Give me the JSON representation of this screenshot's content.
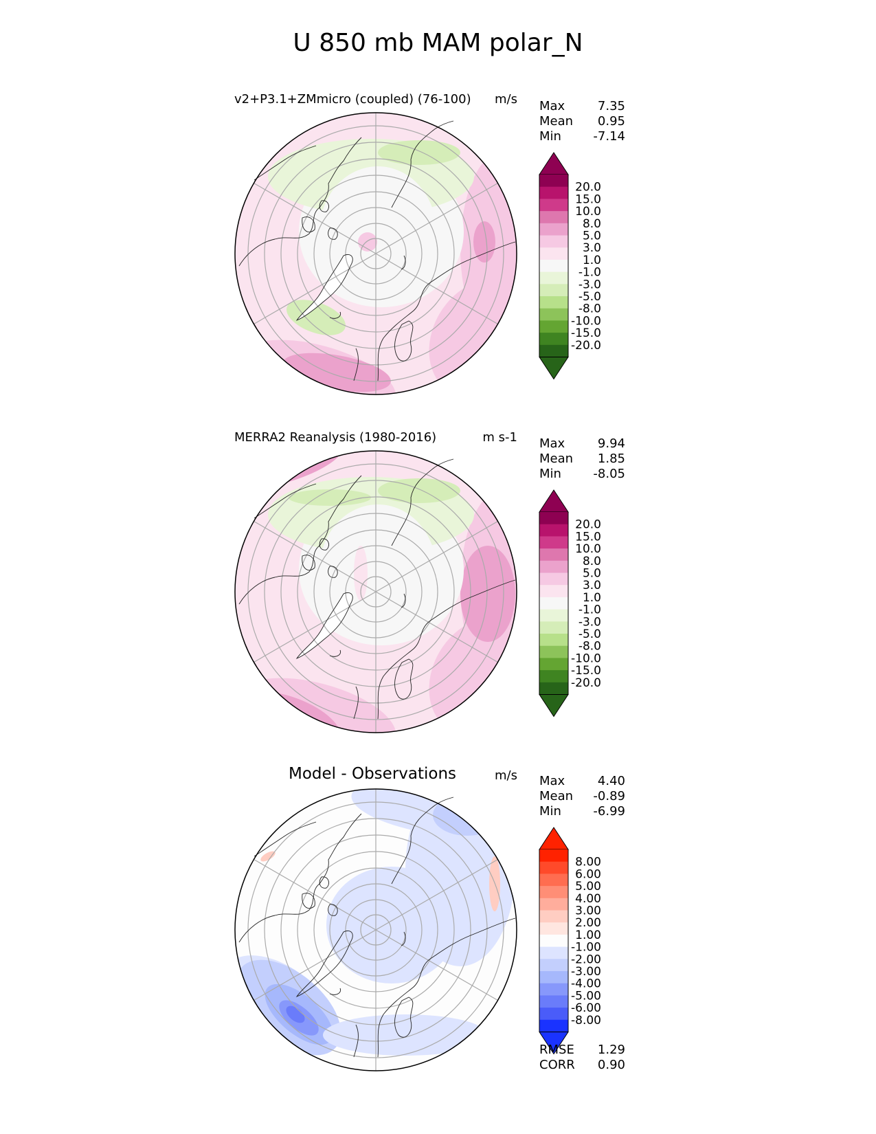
{
  "title": "U 850 mb MAM polar_N",
  "chart_data": [
    {
      "type": "heatmap",
      "projection": "north-polar-stereographic",
      "title": "v2+P3.1+ZMmicro (coupled) (76-100)",
      "units": "m/s",
      "stats": [
        {
          "label": "Max",
          "value": "7.35"
        },
        {
          "label": "Mean",
          "value": "0.95"
        },
        {
          "label": "Min",
          "value": "-7.14"
        }
      ],
      "colorbar": {
        "ticks": [
          "20.0",
          "15.0",
          "10.0",
          "8.0",
          "5.0",
          "3.0",
          "1.0",
          "-1.0",
          "-3.0",
          "-5.0",
          "-8.0",
          "-10.0",
          "-15.0",
          "-20.0"
        ],
        "colors": [
          "#8e0152",
          "#b8136c",
          "#cf3a8a",
          "#de77ae",
          "#eba2cc",
          "#f6c9e3",
          "#fbe4ef",
          "#f7f7f7",
          "#e9f5d9",
          "#d5edb8",
          "#b7e08a",
          "#8dc35a",
          "#64a532",
          "#3f8421",
          "#276419"
        ],
        "max_color": "#8e0152",
        "min_color": "#276419"
      },
      "field_colors": [
        "#fbe4ef",
        "#f6c9e3",
        "#eba2cc",
        "#f7f7f7",
        "#e9f5d9",
        "#d5edb8"
      ]
    },
    {
      "type": "heatmap",
      "projection": "north-polar-stereographic",
      "title": "MERRA2 Reanalysis (1980-2016)",
      "units": "m s-1",
      "stats": [
        {
          "label": "Max",
          "value": "9.94"
        },
        {
          "label": "Mean",
          "value": "1.85"
        },
        {
          "label": "Min",
          "value": "-8.05"
        }
      ],
      "colorbar": {
        "ticks": [
          "20.0",
          "15.0",
          "10.0",
          "8.0",
          "5.0",
          "3.0",
          "1.0",
          "-1.0",
          "-3.0",
          "-5.0",
          "-8.0",
          "-10.0",
          "-15.0",
          "-20.0"
        ],
        "colors": [
          "#8e0152",
          "#b8136c",
          "#cf3a8a",
          "#de77ae",
          "#eba2cc",
          "#f6c9e3",
          "#fbe4ef",
          "#f7f7f7",
          "#e9f5d9",
          "#d5edb8",
          "#b7e08a",
          "#8dc35a",
          "#64a532",
          "#3f8421",
          "#276419"
        ],
        "max_color": "#8e0152",
        "min_color": "#276419"
      },
      "field_colors": [
        "#fbe4ef",
        "#f6c9e3",
        "#eba2cc",
        "#f7f7f7",
        "#e9f5d9",
        "#d5edb8"
      ]
    },
    {
      "type": "heatmap",
      "projection": "north-polar-stereographic",
      "title": "Model - Observations",
      "units": "m/s",
      "stats": [
        {
          "label": "Max",
          "value": "4.40"
        },
        {
          "label": "Mean",
          "value": "-0.89"
        },
        {
          "label": "Min",
          "value": "-6.99"
        }
      ],
      "colorbar": {
        "ticks": [
          "8.00",
          "6.00",
          "5.00",
          "4.00",
          "3.00",
          "2.00",
          "1.00",
          "-1.00",
          "-2.00",
          "-3.00",
          "-4.00",
          "-5.00",
          "-6.00",
          "-8.00"
        ],
        "colors": [
          "#ff2200",
          "#ff4a2a",
          "#ff6d50",
          "#ff8e76",
          "#ffad9c",
          "#ffcdc2",
          "#ffe6e0",
          "#fdfdfd",
          "#dde4ff",
          "#c3cffd",
          "#a6b8fc",
          "#8798fb",
          "#6a7cfa",
          "#4a5cf9",
          "#1a33ff"
        ],
        "max_color": "#ff2200",
        "min_color": "#1a33ff"
      },
      "field_colors": [
        "#fdfdfd",
        "#dde4ff",
        "#c3cffd",
        "#a6b8fc",
        "#8798fb",
        "#6a7cfa",
        "#ffcdc2"
      ],
      "footer_stats": [
        {
          "label": "RMSE",
          "value": "1.29"
        },
        {
          "label": "CORR",
          "value": "0.90"
        }
      ]
    }
  ]
}
